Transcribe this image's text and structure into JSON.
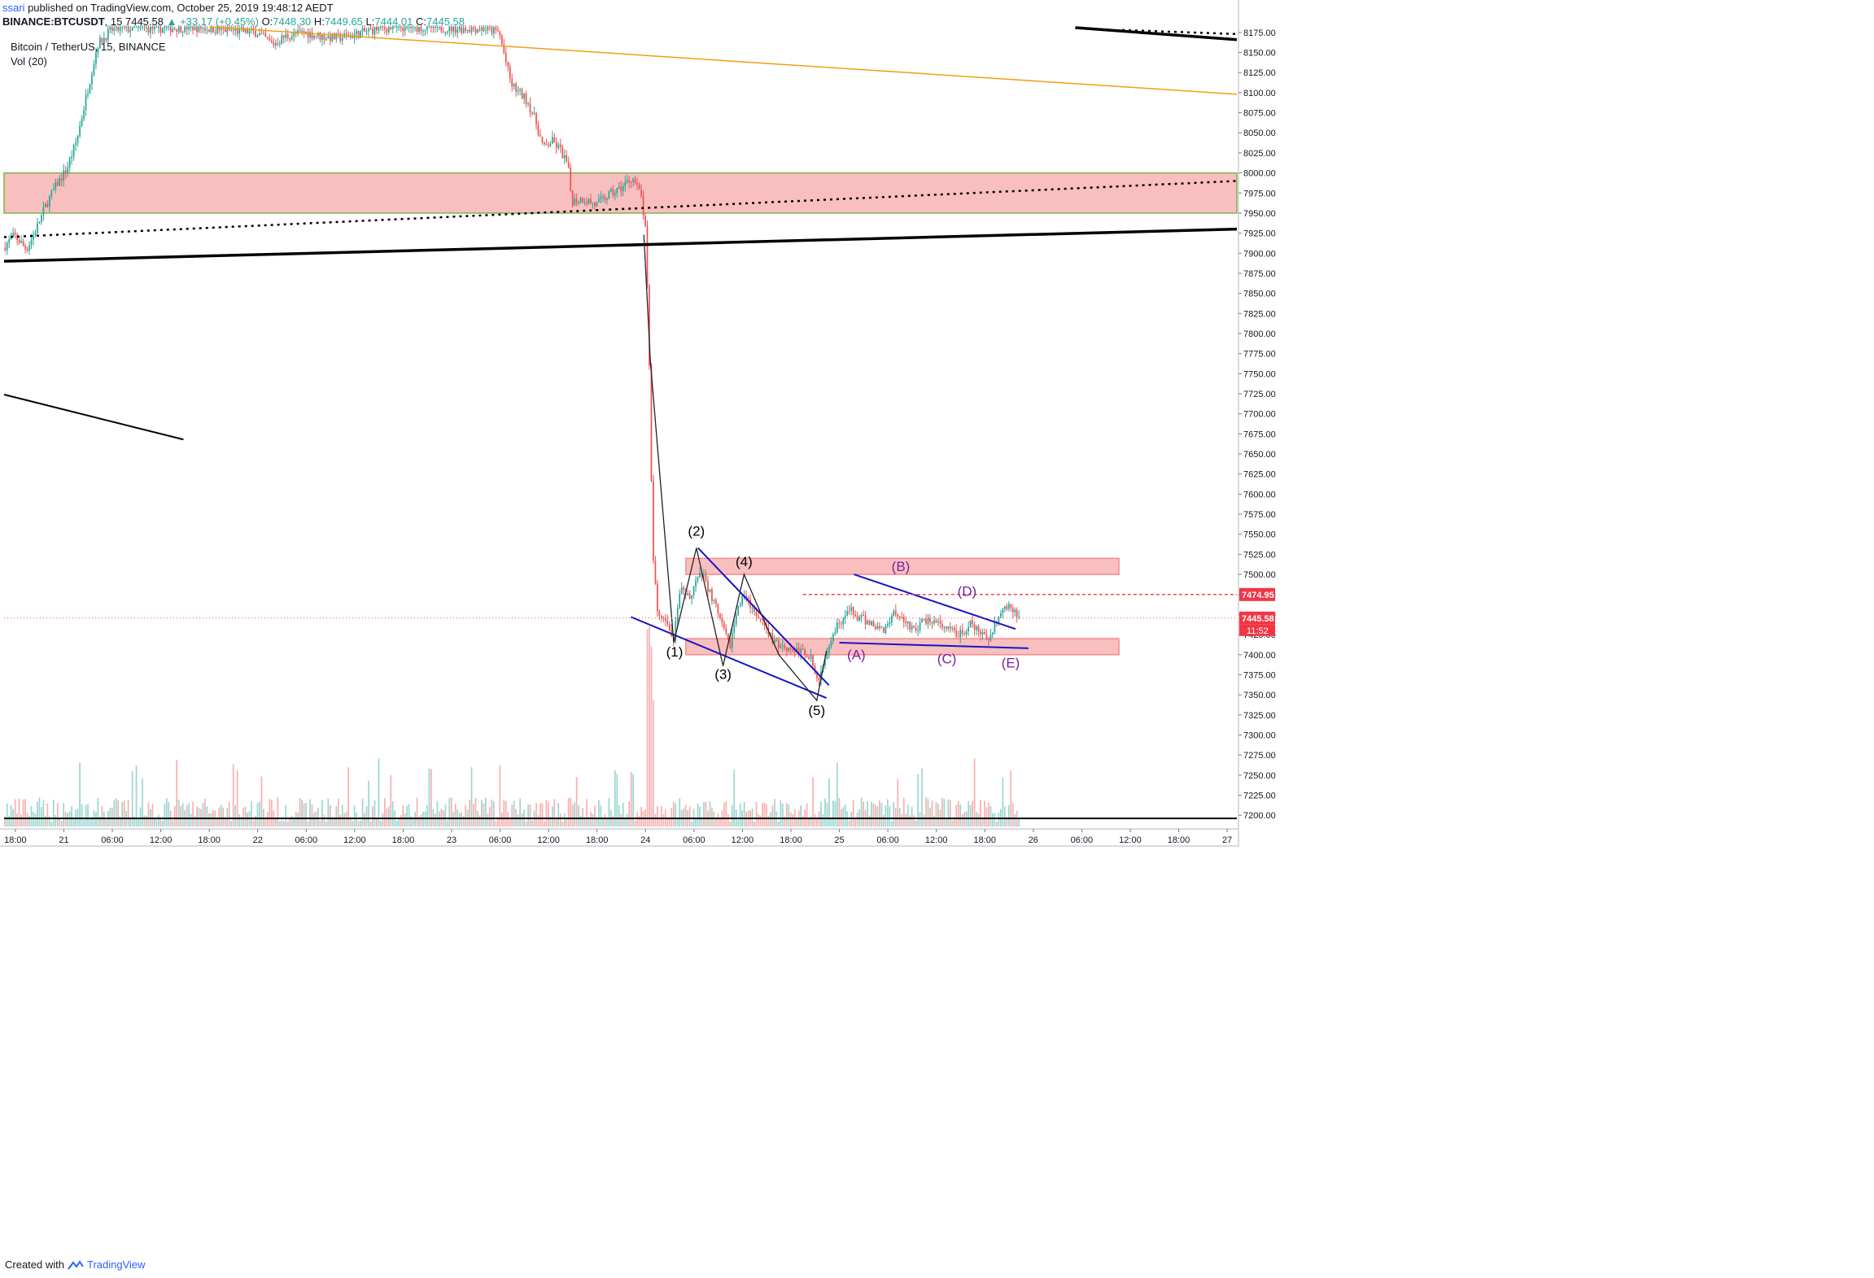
{
  "header": {
    "publisher": "ssari",
    "publish_text": " published on TradingView.com, October 25, 2019 19:48:12 AEDT",
    "symbol": "BINANCE:BTCUSDT",
    "interval": ", 15",
    "last": "7445.58",
    "change": "▲ +33.17 (+0.45%)",
    "o_label": "O:",
    "o": "7448.30",
    "h_label": "H:",
    "h": "7449.65",
    "l_label": "L:",
    "l": "7444.01",
    "c_label": "C:",
    "c": "7445.58"
  },
  "legend": {
    "title": "Bitcoin / TetherUS, 15, BINANCE",
    "volume": "Vol (20)"
  },
  "footer": {
    "created_with": "Created with",
    "brand": "TradingView"
  },
  "colors": {
    "up": "#26a69a",
    "down": "#ef5350",
    "zone_fill": "#f48a8a",
    "zone_stroke": "#7fb24e",
    "trend_black": "#000000",
    "trend_orange": "#f39c12",
    "trend_blue": "#1515c8",
    "wave_purple": "#7b1fa2",
    "price_tag_red": "#f23645"
  },
  "chart_data": {
    "type": "candlestick",
    "title": "Bitcoin / TetherUS, 15, BINANCE",
    "ylim": [
      7185,
      8185
    ],
    "y_ticks": [
      7200,
      7225,
      7250,
      7275,
      7300,
      7325,
      7350,
      7375,
      7400,
      7425,
      7450,
      7475,
      7500,
      7525,
      7550,
      7575,
      7600,
      7625,
      7650,
      7675,
      7700,
      7725,
      7750,
      7775,
      7800,
      7825,
      7850,
      7875,
      7900,
      7925,
      7950,
      7975,
      8000,
      8025,
      8050,
      8075,
      8100,
      8125,
      8150,
      8175
    ],
    "x_ticks": [
      "18:00",
      "21",
      "06:00",
      "12:00",
      "18:00",
      "22",
      "06:00",
      "12:00",
      "18:00",
      "23",
      "06:00",
      "12:00",
      "18:00",
      "24",
      "06:00",
      "12:00",
      "18:00",
      "25",
      "06:00",
      "12:00",
      "18:00",
      "26",
      "06:00",
      "12:00",
      "18:00",
      "27"
    ],
    "x_tick_hours": [
      18,
      24,
      30,
      36,
      42,
      48,
      54,
      60,
      66,
      72,
      78,
      84,
      90,
      96,
      102,
      108,
      114,
      120,
      126,
      132,
      138,
      144,
      150,
      156,
      162,
      168
    ],
    "x_range_hours": [
      16.6,
      169.2
    ],
    "price_waypoints": [
      [
        16.6,
        7907
      ],
      [
        18.0,
        7922
      ],
      [
        19.5,
        7905
      ],
      [
        20.7,
        7930
      ],
      [
        22.0,
        7962
      ],
      [
        23.2,
        7985
      ],
      [
        24.5,
        8005
      ],
      [
        25.7,
        8040
      ],
      [
        27.0,
        8100
      ],
      [
        28.3,
        8160
      ],
      [
        30.0,
        8178
      ],
      [
        33.0,
        8180
      ],
      [
        36.0,
        8180
      ],
      [
        40.0,
        8182
      ],
      [
        44.0,
        8178
      ],
      [
        48.0,
        8175
      ],
      [
        50.0,
        8160
      ],
      [
        51.5,
        8170
      ],
      [
        54.0,
        8175
      ],
      [
        56.0,
        8170
      ],
      [
        58.0,
        8168
      ],
      [
        60.0,
        8172
      ],
      [
        63.0,
        8180
      ],
      [
        67.0,
        8182
      ],
      [
        72.0,
        8180
      ],
      [
        76.0,
        8180
      ],
      [
        78.0,
        8175
      ],
      [
        79.5,
        8110
      ],
      [
        81.5,
        8090
      ],
      [
        82.5,
        8065
      ],
      [
        83.5,
        8030
      ],
      [
        84.5,
        8040
      ],
      [
        85.5,
        8030
      ],
      [
        86.5,
        8010
      ],
      [
        87.0,
        7965
      ],
      [
        88.5,
        7968
      ],
      [
        90.0,
        7960
      ],
      [
        91.5,
        7972
      ],
      [
        93.0,
        7980
      ],
      [
        94.5,
        7995
      ],
      [
        95.6,
        7970
      ],
      [
        96.2,
        7920
      ],
      [
        96.6,
        7760
      ],
      [
        97.0,
        7530
      ],
      [
        97.6,
        7450
      ],
      [
        98.5,
        7440
      ],
      [
        99.6,
        7420
      ],
      [
        100.5,
        7480
      ],
      [
        101.5,
        7470
      ],
      [
        102.3,
        7490
      ],
      [
        103.2,
        7500
      ],
      [
        104.5,
        7468
      ],
      [
        105.5,
        7438
      ],
      [
        106.5,
        7410
      ],
      [
        107.5,
        7455
      ],
      [
        108.5,
        7480
      ],
      [
        109.5,
        7450
      ],
      [
        110.5,
        7440
      ],
      [
        112.0,
        7415
      ],
      [
        113.5,
        7410
      ],
      [
        115.0,
        7405
      ],
      [
        116.5,
        7400
      ],
      [
        117.5,
        7360
      ],
      [
        118.2,
        7395
      ],
      [
        119.0,
        7420
      ],
      [
        120.0,
        7440
      ],
      [
        121.5,
        7455
      ],
      [
        122.5,
        7445
      ],
      [
        124.0,
        7440
      ],
      [
        125.5,
        7430
      ],
      [
        127.0,
        7455
      ],
      [
        128.5,
        7440
      ],
      [
        129.5,
        7430
      ],
      [
        131.0,
        7445
      ],
      [
        132.0,
        7440
      ],
      [
        133.5,
        7430
      ],
      [
        135.0,
        7425
      ],
      [
        136.5,
        7438
      ],
      [
        137.5,
        7425
      ],
      [
        138.5,
        7420
      ],
      [
        139.6,
        7445
      ],
      [
        140.5,
        7455
      ],
      [
        141.5,
        7460
      ],
      [
        142.2,
        7446
      ]
    ],
    "volume_scale": "relative",
    "price_line": {
      "value": 7445.58,
      "label": "7445.58",
      "timer": "11:52"
    },
    "alert_line": {
      "value": 7474.95,
      "label": "7474.95"
    },
    "zones": [
      {
        "name": "supply-zone-upper",
        "y_from": 7950,
        "y_to": 8000,
        "x_from": 16.6,
        "x_to": 169.2
      },
      {
        "name": "resistance-box",
        "y_from": 7500,
        "y_to": 7520,
        "x_from": 101.0,
        "x_to": 154.6
      },
      {
        "name": "support-box",
        "y_from": 7400,
        "y_to": 7420,
        "x_from": 101.0,
        "x_to": 154.6
      }
    ],
    "trendlines": [
      {
        "name": "long-black-support",
        "style": "solid",
        "width": 3.5,
        "color": "trend_black",
        "points": [
          [
            16.6,
            7890
          ],
          [
            169.2,
            7930
          ]
        ]
      },
      {
        "name": "long-black-dotted",
        "style": "dotted",
        "width": 2.5,
        "color": "trend_black",
        "points": [
          [
            16.6,
            7920
          ],
          [
            169.2,
            7990
          ]
        ]
      },
      {
        "name": "black-short-down",
        "style": "solid",
        "width": 2,
        "color": "trend_black",
        "points": [
          [
            16.6,
            7724
          ],
          [
            38.8,
            7668
          ]
        ]
      },
      {
        "name": "black-top-right",
        "style": "solid",
        "width": 3.5,
        "color": "trend_black",
        "points": [
          [
            149.2,
            8181
          ],
          [
            169.2,
            8166
          ]
        ]
      },
      {
        "name": "black-top-right-dotted",
        "style": "dotted",
        "width": 2.5,
        "color": "trend_black",
        "points": [
          [
            155.0,
            8178
          ],
          [
            169.2,
            8173
          ]
        ]
      },
      {
        "name": "orange-trend",
        "style": "solid",
        "width": 1.5,
        "color": "trend_orange",
        "points": [
          [
            42.0,
            8182
          ],
          [
            169.2,
            8098
          ]
        ]
      },
      {
        "name": "blue-wedge-upper",
        "style": "solid",
        "width": 2,
        "color": "trend_blue",
        "points": [
          [
            102.5,
            7533
          ],
          [
            118.7,
            7362
          ]
        ]
      },
      {
        "name": "blue-wedge-lower",
        "style": "solid",
        "width": 2,
        "color": "trend_blue",
        "points": [
          [
            94.2,
            7447
          ],
          [
            118.4,
            7346
          ]
        ]
      },
      {
        "name": "blue-triangle-upper",
        "style": "solid",
        "width": 2,
        "color": "trend_blue",
        "points": [
          [
            121.8,
            7500
          ],
          [
            141.8,
            7432
          ]
        ]
      },
      {
        "name": "blue-triangle-lower",
        "style": "solid",
        "width": 2,
        "color": "trend_blue",
        "points": [
          [
            120.0,
            7415
          ],
          [
            143.4,
            7408
          ]
        ]
      }
    ],
    "wave_path": [
      [
        95.8,
        7923
      ],
      [
        96.6,
        7766
      ],
      [
        99.5,
        7415
      ],
      [
        102.3,
        7533
      ],
      [
        105.6,
        7386
      ],
      [
        108.2,
        7500
      ],
      [
        112.5,
        7400
      ],
      [
        117.2,
        7343
      ],
      [
        118.4,
        7405
      ]
    ],
    "wave_labels": [
      {
        "text": "(1)",
        "x": 99.6,
        "y": 7398,
        "color": "trend_black"
      },
      {
        "text": "(2)",
        "x": 102.3,
        "y": 7548,
        "color": "trend_black"
      },
      {
        "text": "(3)",
        "x": 105.6,
        "y": 7370,
        "color": "trend_black"
      },
      {
        "text": "(4)",
        "x": 108.2,
        "y": 7510,
        "color": "trend_black"
      },
      {
        "text": "(5)",
        "x": 117.2,
        "y": 7325,
        "color": "trend_black"
      },
      {
        "text": "(A)",
        "x": 122.1,
        "y": 7394,
        "color": "wave_purple"
      },
      {
        "text": "(B)",
        "x": 127.6,
        "y": 7504,
        "color": "wave_purple"
      },
      {
        "text": "(C)",
        "x": 133.3,
        "y": 7389,
        "color": "wave_purple"
      },
      {
        "text": "(D)",
        "x": 135.8,
        "y": 7473,
        "color": "wave_purple"
      },
      {
        "text": "(E)",
        "x": 141.2,
        "y": 7384,
        "color": "wave_purple"
      }
    ],
    "grid": false
  }
}
